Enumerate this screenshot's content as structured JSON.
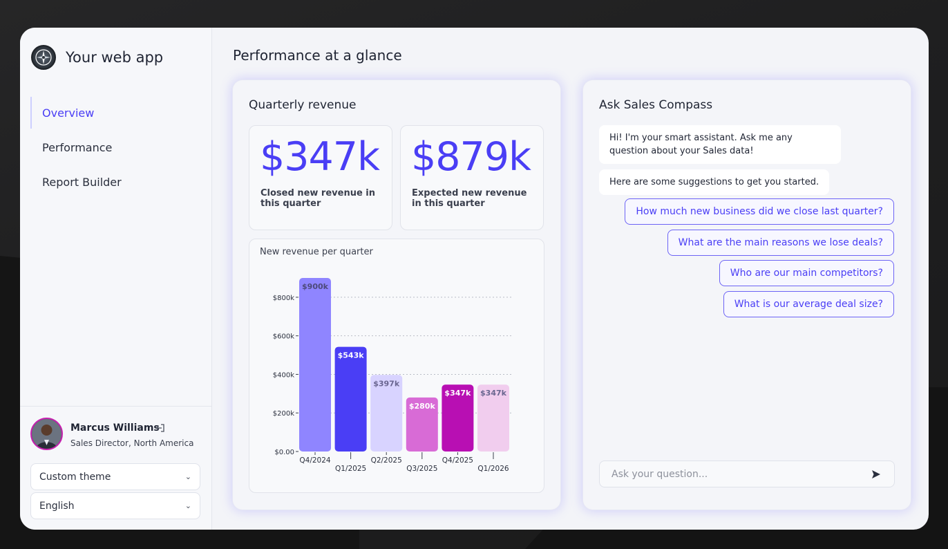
{
  "app": {
    "title": "Your web app"
  },
  "nav": {
    "items": [
      {
        "label": "Overview",
        "active": true
      },
      {
        "label": "Performance",
        "active": false
      },
      {
        "label": "Report Builder",
        "active": false
      }
    ]
  },
  "user": {
    "name": "Marcus Williams",
    "role": "Sales Director, North America"
  },
  "settings": {
    "theme": "Custom theme",
    "language": "English"
  },
  "page": {
    "title": "Performance at a glance"
  },
  "revenue": {
    "title": "Quarterly revenue",
    "kpis": [
      {
        "value": "$347k",
        "label": "Closed new revenue in this quarter"
      },
      {
        "value": "$879k",
        "label": "Expected new revenue in this quarter"
      }
    ]
  },
  "chart_data": {
    "type": "bar",
    "title": "New revenue per quarter",
    "categories": [
      "Q4/2024",
      "Q1/2025",
      "Q2/2025",
      "Q3/2025",
      "Q4/2025",
      "Q1/2026"
    ],
    "values": [
      900,
      543,
      397,
      280,
      347,
      347
    ],
    "value_labels": [
      "$900k",
      "$543k",
      "$397k",
      "$280k",
      "$347k",
      "$347k"
    ],
    "bar_colors": [
      "#8f85ff",
      "#4a3ef5",
      "#d8d3ff",
      "#d86bd6",
      "#b80fb3",
      "#f1cdee"
    ],
    "label_colors": [
      "#4d4a7a",
      "#ffffff",
      "#6a6690",
      "#ffffff",
      "#ffffff",
      "#6a6690"
    ],
    "y_ticks": [
      0,
      200,
      400,
      600,
      800
    ],
    "y_tick_labels": [
      "$0.00",
      "$200k",
      "$400k",
      "$600k",
      "$800k"
    ],
    "ylim": [
      0,
      900
    ],
    "xlabel": "",
    "ylabel": "",
    "grid": true
  },
  "chat": {
    "title": "Ask Sales Compass",
    "messages": [
      "Hi! I'm your smart assistant. Ask me any question about your Sales data!",
      "Here are some suggestions to get you started."
    ],
    "suggestions": [
      "How much new business did we close last quarter?",
      "What are the main reasons we lose deals?",
      "Who are our main competitors?",
      "What is our average deal size?"
    ],
    "input_placeholder": "Ask your question..."
  },
  "colors": {
    "accent": "#4a3ef5",
    "avatar_ring": "#c71fb0"
  }
}
